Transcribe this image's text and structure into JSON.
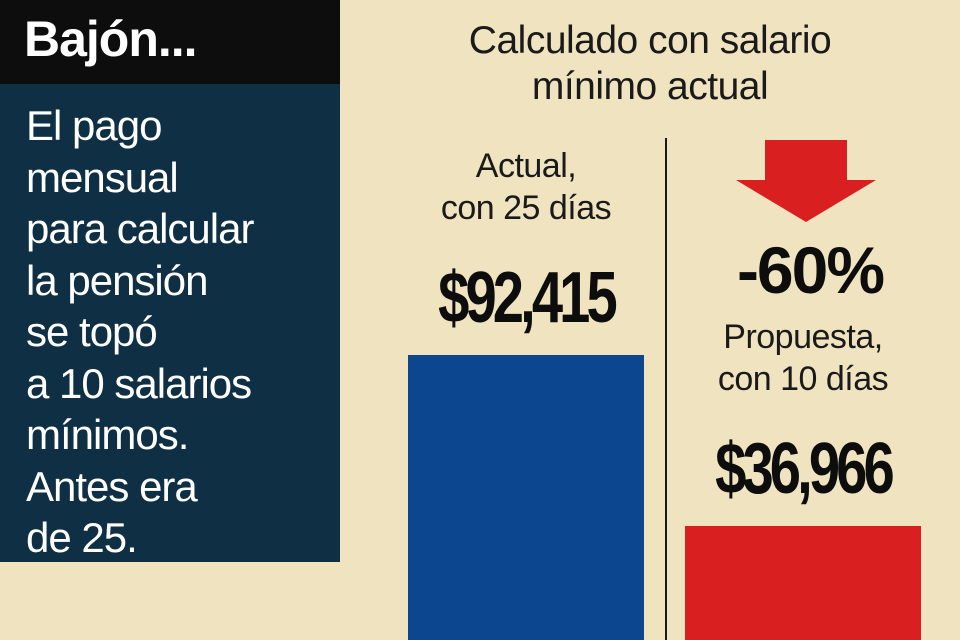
{
  "sidebar": {
    "header": "Bajón...",
    "body": "El pago\nmensual\npara calcular\nla pensión\nse topó\na 10 salarios\nmínimos.\nAntes era\nde 25."
  },
  "colors": {
    "bar_actual": "#0b468e",
    "bar_propuesta": "#d91f1f",
    "arrow": "#d91f1f",
    "background": "#efe3c0",
    "panel": "#0e2f44"
  },
  "chart_data": {
    "type": "bar",
    "title": "Calculado con salario\nmínimo actual",
    "categories": [
      "Actual,\ncon 25 días",
      "Propuesta,\ncon 10 días"
    ],
    "values": [
      92415,
      36966
    ],
    "value_labels": [
      "$92,415",
      "$36,966"
    ],
    "change_label": "-60%",
    "change_icon": "down-arrow-icon",
    "grid": false,
    "legend": "none"
  }
}
